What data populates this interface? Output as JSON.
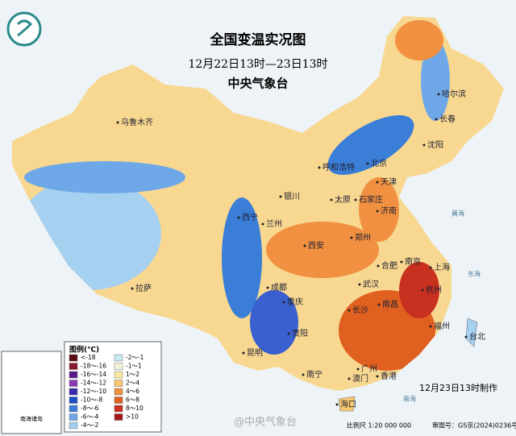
{
  "header": {
    "title": "全国变温实况图",
    "subtitle": "12月22日13时—23日13时",
    "agency": "中央气象台"
  },
  "legend": {
    "title": "图例(℃)",
    "items": [
      {
        "label": "<-18",
        "color": "#5a0a10"
      },
      {
        "label": "-18～-16",
        "color": "#8a1a30"
      },
      {
        "label": "-16～-14",
        "color": "#5a1a8a"
      },
      {
        "label": "-14～-12",
        "color": "#8a3ab8"
      },
      {
        "label": "-12～-10",
        "color": "#3a2ab0"
      },
      {
        "label": "-10～-8",
        "color": "#1f4fc8"
      },
      {
        "label": "-8～-6",
        "color": "#3a7ed8"
      },
      {
        "label": "-6～-4",
        "color": "#6fa8e8"
      },
      {
        "label": "-4～-2",
        "color": "#a6d0f0"
      },
      {
        "label": "-2～-1",
        "color": "#c8eaf0"
      },
      {
        "label": "-1～1",
        "color": "#f2f2dc"
      },
      {
        "label": "1～2",
        "color": "#f8e8a0"
      },
      {
        "label": "2～4",
        "color": "#f8c870"
      },
      {
        "label": "4～6",
        "color": "#f09040"
      },
      {
        "label": "6～8",
        "color": "#e06020"
      },
      {
        "label": "8～10",
        "color": "#c83020"
      },
      {
        "label": ">10",
        "color": "#a01818"
      }
    ]
  },
  "cities": [
    "乌鲁木齐",
    "哈尔滨",
    "长春",
    "沈阳",
    "呼和浩特",
    "北京",
    "天津",
    "银川",
    "太原",
    "石家庄",
    "西宁",
    "兰州",
    "济南",
    "郑州",
    "西安",
    "合肥",
    "南京",
    "上海",
    "成都",
    "武汉",
    "杭州",
    "拉萨",
    "重庆",
    "长沙",
    "南昌",
    "福州",
    "贵阳",
    "台北",
    "昆明",
    "南宁",
    "广州",
    "香港",
    "澳门",
    "海口"
  ],
  "seas": [
    "黄海",
    "东海",
    "南海"
  ],
  "inset": {
    "label": "南海诸岛"
  },
  "footer": {
    "made": "12月23日13时制作",
    "scale": "比例尺 1:20 000 000",
    "approval": "审图号：GS京(2024)0236号",
    "watermark": "@中央气象台"
  }
}
